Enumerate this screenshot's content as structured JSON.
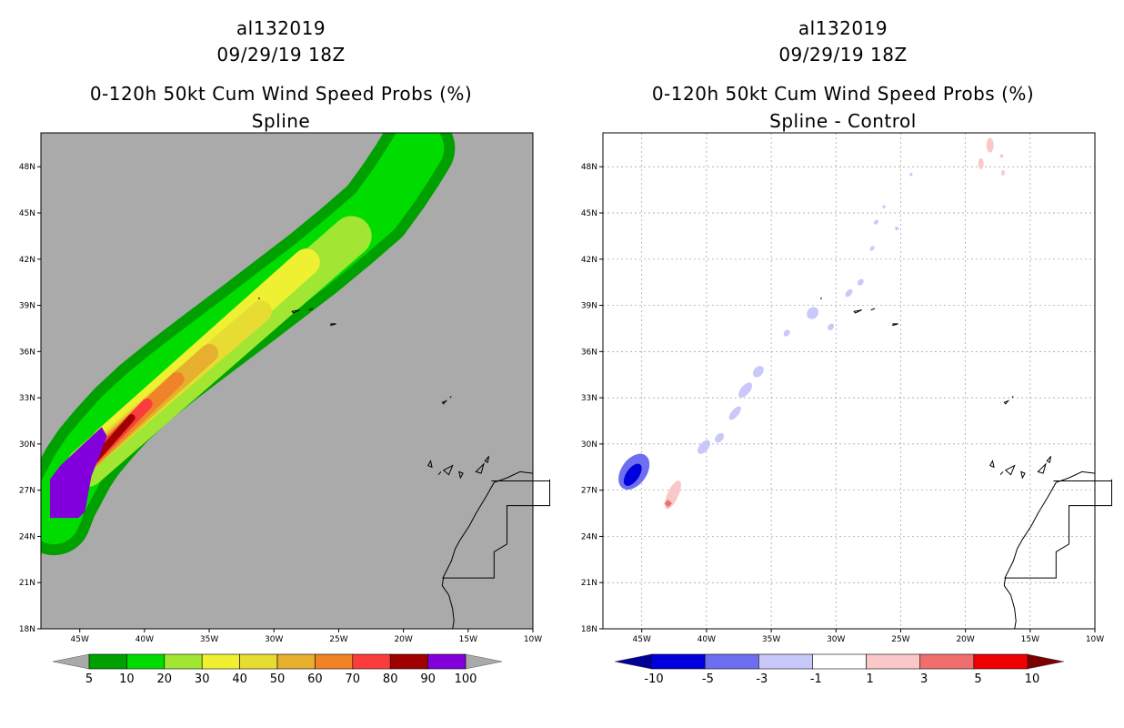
{
  "panels": [
    {
      "storm_id": "al132019",
      "datetime": "09/29/19 18Z",
      "product": "0-120h 50kt Cum Wind Speed Probs (%)",
      "subtitle": "Spline",
      "background_color": "#aaaaaa",
      "colorbar": {
        "labels": [
          "5",
          "10",
          "20",
          "30",
          "40",
          "50",
          "60",
          "70",
          "80",
          "90",
          "100"
        ],
        "colors": [
          "#00a000",
          "#00dc00",
          "#a0e632",
          "#f0f032",
          "#e6dc32",
          "#e6af2d",
          "#f08228",
          "#fa3c3c",
          "#a00000",
          "#8200dc"
        ],
        "end_low": "#aaaaaa",
        "end_high": "#aaaaaa"
      }
    },
    {
      "storm_id": "al132019",
      "datetime": "09/29/19 18Z",
      "product": "0-120h 50kt Cum Wind Speed Probs (%)",
      "subtitle": "Spline - Control",
      "background_color": "#ffffff",
      "colorbar": {
        "labels": [
          "-10",
          "-5",
          "-3",
          "-1",
          "1",
          "3",
          "5",
          "10"
        ],
        "colors": [
          "#0000dc",
          "#6e6ef0",
          "#c8c8fa",
          "#ffffff",
          "#fac8c8",
          "#f06e6e",
          "#f00000"
        ],
        "end_low": "#000096",
        "end_high": "#780000"
      }
    }
  ],
  "axes": {
    "lat_labels": [
      "48N",
      "45N",
      "42N",
      "39N",
      "36N",
      "33N",
      "30N",
      "27N",
      "24N",
      "21N",
      "18N"
    ],
    "lon_labels": [
      "45W",
      "40W",
      "35W",
      "30W",
      "25W",
      "20W",
      "15W",
      "10W"
    ]
  }
}
